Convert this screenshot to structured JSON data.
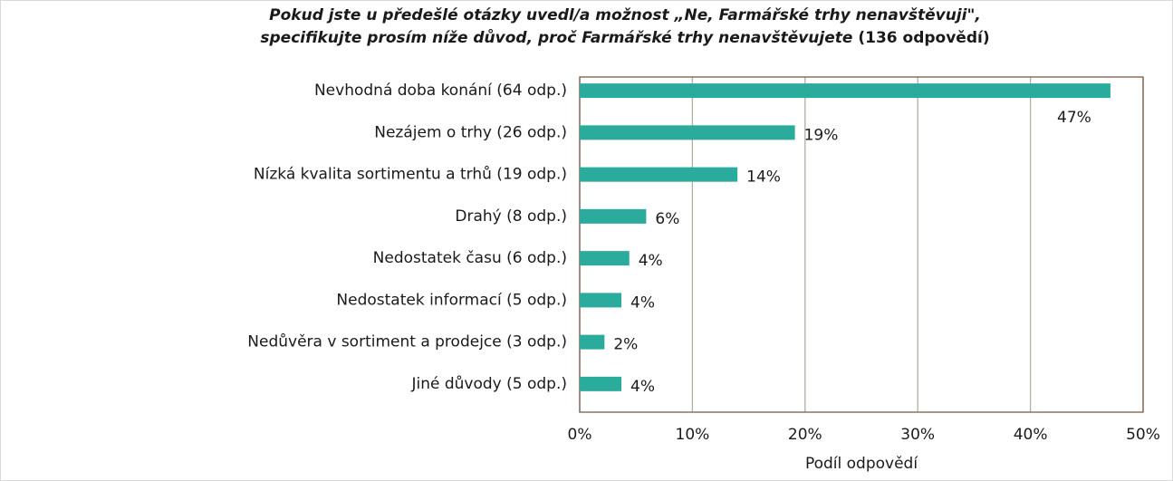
{
  "chart_data": {
    "type": "barh",
    "title": [
      "Pokud jste u předešlé otázky uvedl/a možnost „Ne, Farmářské trhy nenavštěvuji\",",
      "specifikujte prosím níže důvod, proč Farmářské trhy nenavštěvujete"
    ],
    "title_note": "(136 odpovědí)",
    "categories": [
      "Nevhodná doba konání (64 odp.)",
      "Nezájem o trhy (26 odp.)",
      "Nízká kvalita sortimentu a trhů (19 odp.)",
      "Drahý (8 odp.)",
      "Nedostatek času (6 odp.)",
      "Nedostatek informací (5 odp.)",
      "Nedůvěra v sortiment a prodejce (3 odp.)",
      "Jiné důvody (5 odp.)"
    ],
    "values": [
      47.1,
      19.1,
      14,
      5.9,
      4.4,
      3.7,
      2.2,
      3.7
    ],
    "value_labels": [
      "47%",
      "19%",
      "14%",
      "6%",
      "4%",
      "4%",
      "2%",
      "4%"
    ],
    "color": "#2aab9b",
    "xlim": [
      0,
      50
    ],
    "xticks": [
      {
        "value": 0,
        "label": "0%"
      },
      {
        "value": 10,
        "label": "10%"
      },
      {
        "value": 20,
        "label": "20%"
      },
      {
        "value": 30,
        "label": "30%"
      },
      {
        "value": 40,
        "label": "40%"
      },
      {
        "value": 50,
        "label": "50%"
      }
    ],
    "xlabel": "Podíl odpovědí",
    "grid": true
  }
}
